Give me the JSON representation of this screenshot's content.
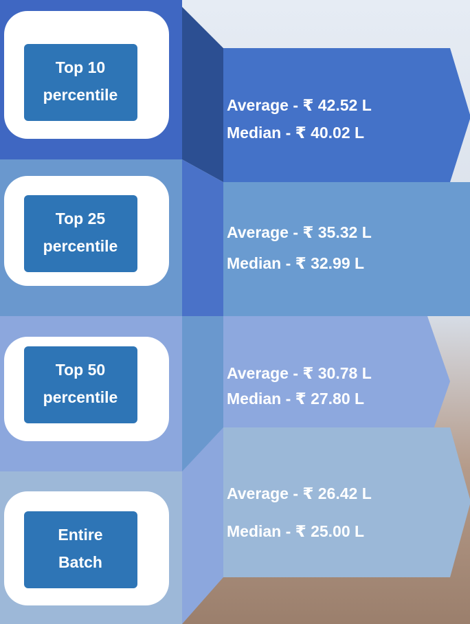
{
  "rows": [
    {
      "label_lines": [
        "Top 10",
        "percentile"
      ],
      "average": "Average - ₹ 42.52 L",
      "median": "Median - ₹ 40.02 L"
    },
    {
      "label_lines": [
        "Top 25",
        "percentile"
      ],
      "average": "Average - ₹ 35.32 L",
      "median": "Median - ₹ 32.99 L"
    },
    {
      "label_lines": [
        "Top 50",
        "percentile"
      ],
      "average": "Average - ₹ 30.78 L",
      "median": "Median - ₹ 27.80 L"
    },
    {
      "label_lines": [
        "Entire",
        "Batch"
      ],
      "average": "Average - ₹ 26.42 L",
      "median": "Median - ₹ 25.00 L"
    }
  ]
}
